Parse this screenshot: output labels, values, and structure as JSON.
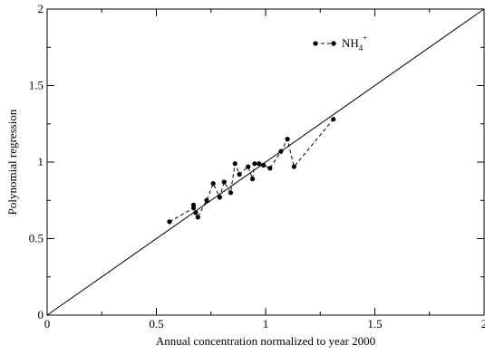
{
  "chart_data": {
    "type": "scatter",
    "title": "",
    "xlabel": "Annual concentration normalized to year 2000",
    "ylabel": "Polynomial regression",
    "xlim": [
      0,
      2
    ],
    "ylim": [
      0,
      2
    ],
    "xticks": [
      "0",
      "0.5",
      "1",
      "1.5",
      "2"
    ],
    "yticks": [
      "0",
      "0.5",
      "1",
      "1.5",
      "2"
    ],
    "grid": false,
    "legend_position": "top-right",
    "reference_line": {
      "from": [
        0,
        0
      ],
      "to": [
        2,
        2
      ]
    },
    "series": [
      {
        "name": "NH4+",
        "name_main": "NH",
        "name_sub": "4",
        "name_sup": "+",
        "color": "#000000",
        "line_style": "dashed",
        "marker": "circle",
        "x": [
          0.56,
          0.67,
          0.67,
          0.68,
          0.69,
          0.73,
          0.76,
          0.79,
          0.81,
          0.84,
          0.86,
          0.88,
          0.92,
          0.94,
          0.95,
          0.97,
          0.99,
          1.02,
          1.07,
          1.1,
          1.13,
          1.31
        ],
        "y": [
          0.61,
          0.7,
          0.72,
          0.67,
          0.64,
          0.75,
          0.86,
          0.77,
          0.87,
          0.8,
          0.99,
          0.92,
          0.97,
          0.89,
          0.99,
          0.99,
          0.98,
          0.96,
          1.07,
          1.15,
          0.97,
          1.28
        ]
      }
    ]
  }
}
